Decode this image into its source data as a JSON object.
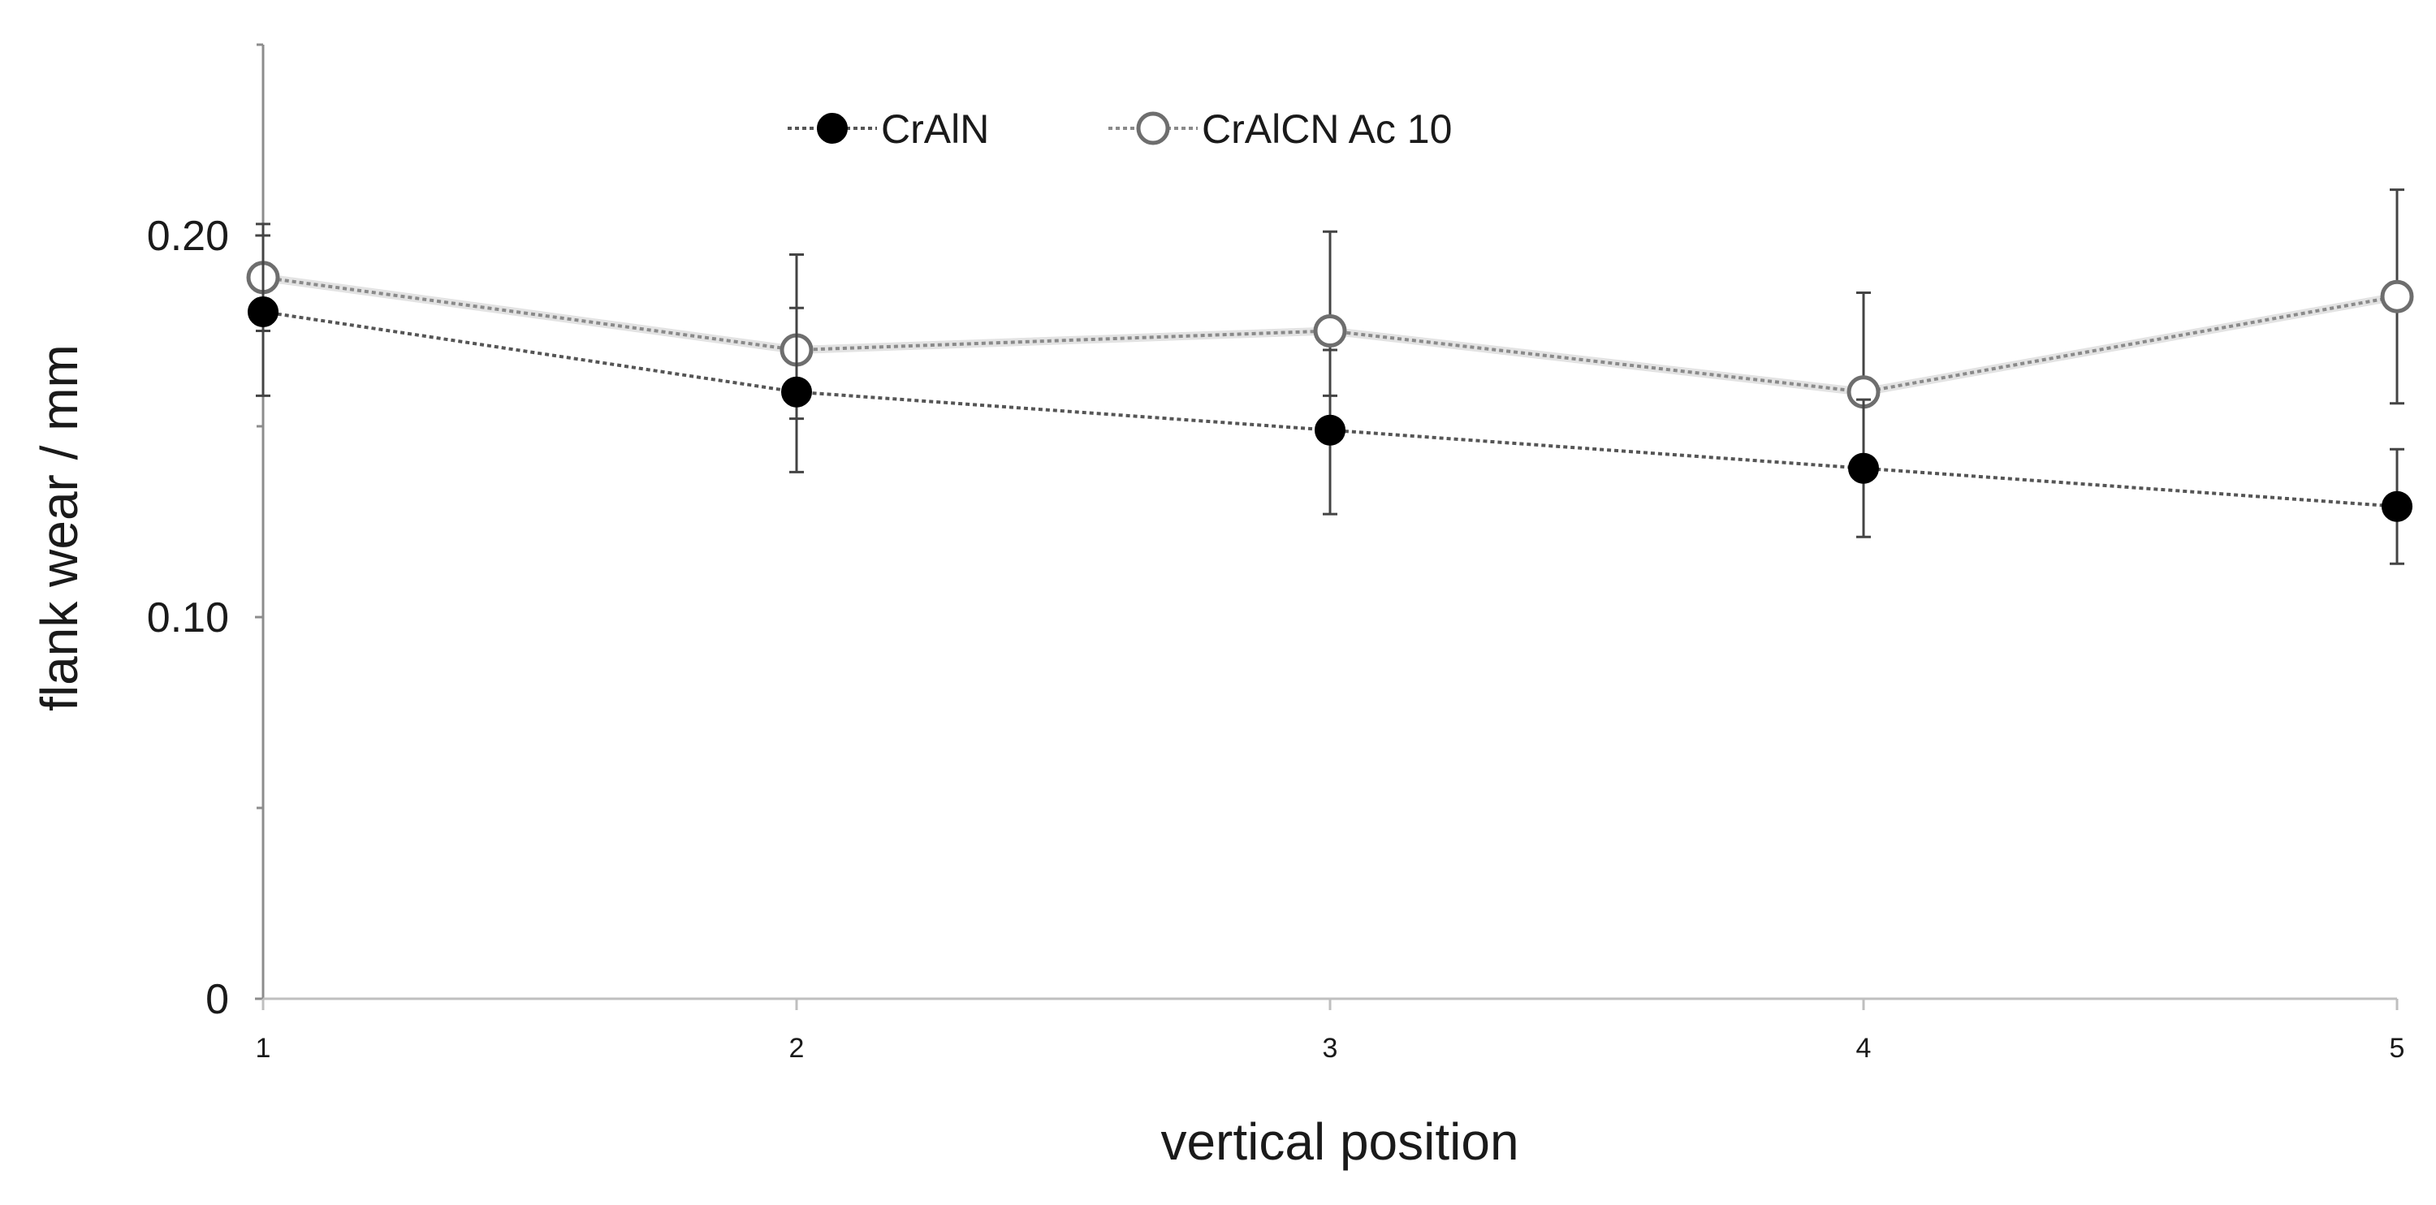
{
  "chart_data": {
    "type": "line",
    "title": "",
    "xlabel": "vertical position",
    "ylabel": "flank wear / mm",
    "x": [
      1,
      2,
      3,
      4,
      5
    ],
    "xlim": [
      1,
      5
    ],
    "ylim": [
      0,
      0.25
    ],
    "xticks": [
      "1",
      "2",
      "3",
      "4",
      "5"
    ],
    "yticks": [
      {
        "value": 0,
        "label": "0"
      },
      {
        "value": 0.1,
        "label": "0.10"
      },
      {
        "value": 0.2,
        "label": "0.20"
      }
    ],
    "yminor": [
      0.05,
      0.15,
      0.25
    ],
    "grid": false,
    "legend": "top-center",
    "series": [
      {
        "name": "CrAlN",
        "marker": "filled",
        "color": "#000000",
        "values": [
          0.18,
          0.159,
          0.149,
          0.139,
          0.129
        ],
        "err_low": [
          0.022,
          0.021,
          0.022,
          0.018,
          0.015
        ],
        "err_high": [
          0.02,
          0.022,
          0.021,
          0.018,
          0.015
        ]
      },
      {
        "name": "CrAlCN Ac 10",
        "marker": "open",
        "color": "#7f7f7f",
        "values": [
          0.189,
          0.17,
          0.175,
          0.159,
          0.184
        ],
        "err_low": [
          0.014,
          0.018,
          0.017,
          0.017,
          0.028
        ],
        "err_high": [
          0.014,
          0.025,
          0.026,
          0.026,
          0.028
        ]
      }
    ]
  }
}
